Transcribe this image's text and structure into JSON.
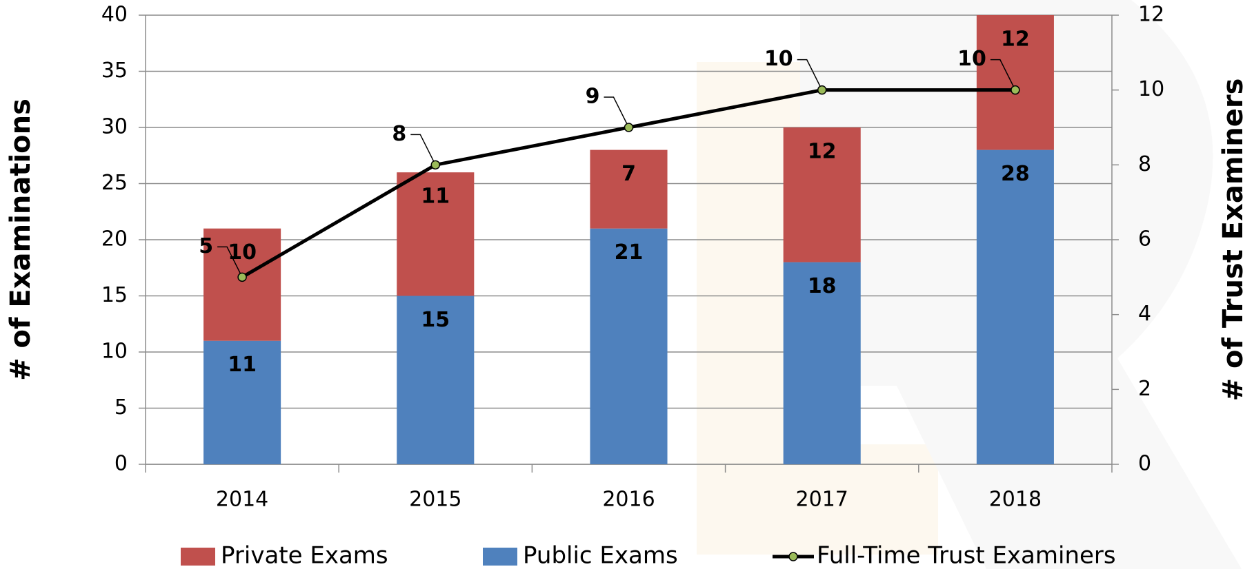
{
  "chart_data": {
    "type": "bar",
    "categories": [
      "2014",
      "2015",
      "2016",
      "2017",
      "2018"
    ],
    "y_label": "# of Examinations",
    "y2_label": "# of Trust Examiners",
    "ylim": [
      0,
      40
    ],
    "yticks": [
      0,
      5,
      10,
      15,
      20,
      25,
      30,
      35,
      40
    ],
    "y2lim": [
      0,
      12
    ],
    "y2ticks": [
      0,
      2,
      4,
      6,
      8,
      10,
      12
    ],
    "grid": true,
    "stacked": true,
    "legend": "bottom",
    "series": [
      {
        "name": "Private Exams",
        "type": "bar",
        "color": "#c0504d",
        "values": [
          10,
          11,
          7,
          12,
          12
        ]
      },
      {
        "name": "Public Exams",
        "type": "bar",
        "color": "#4f81bd",
        "values": [
          11,
          15,
          21,
          18,
          28
        ]
      },
      {
        "name": "Full-Time Trust Examiners",
        "type": "line",
        "axis": "y2",
        "color": "#000000",
        "marker_color": "#9bbb59",
        "values": [
          5,
          8,
          9,
          10,
          10
        ]
      }
    ]
  }
}
